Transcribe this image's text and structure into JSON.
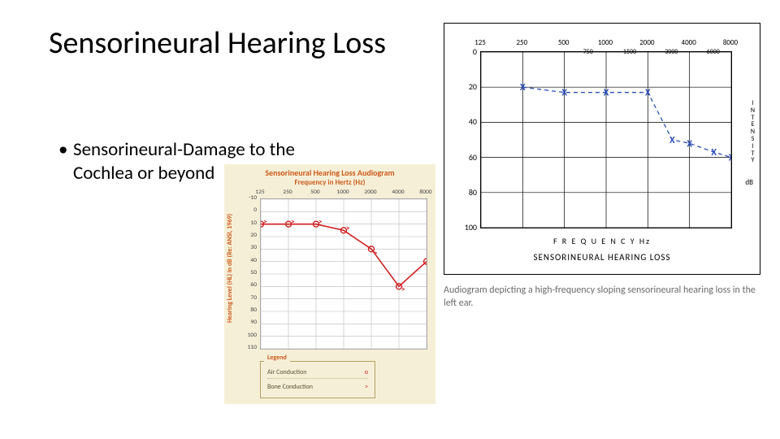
{
  "title": "Sensorineural Hearing Loss",
  "bullet": "Sensorineural-Damage to the Cochlea or beyond",
  "caption": "Audiogram depicting a high-frequency sloping sensorineural hearing loss in the left ear.",
  "orange_chart": {
    "type": "line",
    "title_top": "Sensorineural Hearing Loss Audiogram",
    "title_sub": "Frequency in Hertz (Hz)",
    "ylabel": "Hearing Level (HL) in dB (Re: ANSI, 1969)",
    "bg_color": "#f6efd8",
    "plot_bg": "#ffffff",
    "grid_color": "#bbbbbb",
    "text_color": "#cb5a1a",
    "line_color": "#d02020",
    "marker_color": "#d02020",
    "y_min": -10,
    "y_max": 110,
    "y_step": 10,
    "x_freqs": [
      125,
      250,
      500,
      1000,
      2000,
      4000,
      8000
    ],
    "air_conduction": [
      10,
      10,
      10,
      15,
      30,
      60,
      40
    ],
    "bone_conduction": [
      8,
      8,
      8,
      13,
      33,
      62,
      42
    ],
    "legend_title": "Legend",
    "legend_rows": [
      {
        "label": "Air Conduction",
        "symbol": "o"
      },
      {
        "label": "Bone Conduction",
        "symbol": ">"
      }
    ]
  },
  "blue_chart": {
    "type": "line",
    "subtitle": "SENSORINEURAL  HEARING LOSS",
    "xlabel": "F R E Q U E N C Y   Hz",
    "ylabel_vertical": "INTENSITY",
    "db_label": "dB",
    "grid_color": "#000000",
    "line_color": "#2b4fb8",
    "marker_symbol": "X",
    "y_ticks": [
      0,
      20,
      40,
      60,
      80,
      100
    ],
    "x_major_freqs": [
      125,
      250,
      500,
      1000,
      2000,
      4000,
      8000
    ],
    "x_minor_freqs": [
      750,
      1500,
      3000,
      6000
    ],
    "points": [
      {
        "freq": 250,
        "db": 20
      },
      {
        "freq": 500,
        "db": 23
      },
      {
        "freq": 1000,
        "db": 23
      },
      {
        "freq": 2000,
        "db": 23
      },
      {
        "freq": 3000,
        "db": 50
      },
      {
        "freq": 4000,
        "db": 52
      },
      {
        "freq": 6000,
        "db": 57
      },
      {
        "freq": 8000,
        "db": 60
      }
    ]
  }
}
